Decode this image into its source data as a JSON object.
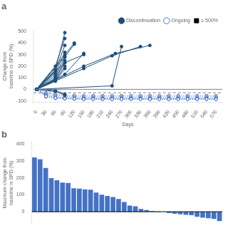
{
  "chart_data": [
    {
      "type": "line",
      "title": "a",
      "xlabel": "Days",
      "ylabel": "Change from baseline in SPD (%)",
      "xlim": [
        -10,
        590
      ],
      "ylim": [
        -110,
        510
      ],
      "xticks": [
        0,
        30,
        60,
        90,
        120,
        150,
        180,
        210,
        240,
        270,
        300,
        330,
        360,
        390,
        420,
        450,
        480,
        510,
        540,
        570
      ],
      "yticks": [
        -100,
        0,
        100,
        200,
        300,
        400,
        500
      ],
      "grid": false,
      "legend": "upper right",
      "reference_lines": [
        {
          "y": 0,
          "color": "gray",
          "line_style": "solid"
        },
        {
          "y": -30,
          "color": "gray",
          "line_style": "dashed"
        }
      ],
      "series": [
        {
          "name": "Discontinuation",
          "color": "#1F4E79",
          "line_style": "solid",
          "marker": "circle",
          "x": [
            0,
            60,
            90
          ],
          "values": [
            0,
            170,
            490
          ]
        },
        {
          "name": "Discontinuation",
          "color": "#1F4E79",
          "line_style": "solid",
          "marker": "circle",
          "x": [
            0,
            60,
            90
          ],
          "values": [
            0,
            200,
            440
          ]
        },
        {
          "name": "Discontinuation",
          "color": "#1F4E79",
          "line_style": "solid",
          "marker": "circle",
          "x": [
            0,
            60,
            90
          ],
          "values": [
            0,
            160,
            380
          ]
        },
        {
          "name": "Discontinuation",
          "color": "#1F4E79",
          "line_style": "solid",
          "marker": "circle",
          "x": [
            0,
            60,
            90
          ],
          "values": [
            0,
            140,
            320
          ]
        },
        {
          "name": "Discontinuation",
          "color": "#1F4E79",
          "line_style": "solid",
          "marker": "circle",
          "x": [
            0,
            60,
            90
          ],
          "values": [
            0,
            120,
            280
          ]
        },
        {
          "name": "Discontinuation",
          "color": "#1F4E79",
          "line_style": "solid",
          "marker": "circle",
          "x": [
            0,
            60,
            90
          ],
          "values": [
            0,
            100,
            250
          ]
        },
        {
          "name": "Discontinuation",
          "color": "#1F4E79",
          "line_style": "solid",
          "marker": "circle",
          "x": [
            0,
            60,
            90
          ],
          "values": [
            0,
            90,
            230
          ]
        },
        {
          "name": "Discontinuation",
          "color": "#1F4E79",
          "line_style": "solid",
          "marker": "circle",
          "x": [
            0,
            60,
            90
          ],
          "values": [
            0,
            80,
            200
          ]
        },
        {
          "name": "Discontinuation",
          "color": "#1F4E79",
          "line_style": "solid",
          "marker": "circle",
          "x": [
            0,
            60,
            90
          ],
          "values": [
            0,
            70,
            180
          ]
        },
        {
          "name": "Discontinuation",
          "color": "#1F4E79",
          "line_style": "solid",
          "marker": "circle",
          "x": [
            0,
            90,
            150
          ],
          "values": [
            0,
            130,
            310
          ]
        },
        {
          "name": "Discontinuation",
          "color": "#1F4E79",
          "line_style": "solid",
          "marker": "circle",
          "x": [
            0,
            90,
            120
          ],
          "values": [
            0,
            280,
            390
          ]
        },
        {
          "name": "Discontinuation",
          "color": "#1F4E79",
          "line_style": "solid",
          "marker": "circle",
          "x": [
            0,
            90,
            150
          ],
          "values": [
            0,
            230,
            300
          ]
        },
        {
          "name": "Discontinuation",
          "color": "#1F4E79",
          "line_style": "solid",
          "marker": "circle",
          "x": [
            0,
            90,
            120
          ],
          "values": [
            0,
            300,
            400
          ]
        },
        {
          "name": "Discontinuation",
          "color": "#1F4E79",
          "line_style": "solid",
          "marker": "circle",
          "x": [
            0,
            150,
            240,
            330
          ],
          "values": [
            0,
            180,
            290,
            370
          ]
        },
        {
          "name": "Discontinuation",
          "color": "#1F4E79",
          "line_style": "solid",
          "marker": "circle",
          "x": [
            0,
            150,
            250,
            360
          ],
          "values": [
            0,
            200,
            310,
            380
          ]
        },
        {
          "name": "Discontinuation",
          "color": "#1F4E79",
          "line_style": "solid",
          "marker": "circle",
          "x": [
            0,
            240,
            270
          ],
          "values": [
            0,
            30,
            370
          ]
        },
        {
          "name": "Discontinuation",
          "color": "#1F4E79",
          "line_style": "solid",
          "marker": "circle",
          "x": [
            0,
            60,
            90
          ],
          "values": [
            0,
            -20,
            -50
          ]
        },
        {
          "name": "Discontinuation",
          "color": "#1F4E79",
          "line_style": "solid",
          "marker": "circle",
          "x": [
            0,
            60,
            90
          ],
          "values": [
            0,
            -10,
            -40
          ]
        },
        {
          "name": "Ongoing",
          "color": "#4472C4",
          "line_style": "dotted",
          "marker": "open_circle",
          "x": [
            0,
            30,
            60,
            90,
            120,
            150,
            180,
            210,
            240,
            270,
            300,
            330,
            360,
            390,
            420,
            450,
            480,
            510,
            540,
            570
          ],
          "values": [
            0,
            -60,
            -75,
            -80,
            -82,
            -85,
            -85,
            -85,
            -85,
            -85,
            -85,
            -85,
            -85,
            -85,
            -85,
            -85,
            -85,
            -85,
            -85,
            -85
          ]
        },
        {
          "name": "Ongoing",
          "color": "#4472C4",
          "line_style": "dotted",
          "marker": "open_circle",
          "x": [
            0,
            30,
            60,
            90,
            120,
            150,
            180,
            210,
            240,
            270,
            300,
            330,
            360,
            390,
            420,
            450,
            480,
            510,
            540,
            570
          ],
          "values": [
            0,
            -65,
            -78,
            -82,
            -84,
            -86,
            -86,
            -86,
            -86,
            -86,
            -86,
            -86,
            -86,
            -86,
            -86,
            -86,
            -86,
            -86,
            -86,
            -86
          ]
        },
        {
          "name": "Ongoing",
          "color": "#4472C4",
          "line_style": "dotted",
          "marker": "open_circle",
          "x": [
            0,
            30,
            60,
            90,
            120,
            150,
            180,
            210,
            240,
            270,
            300,
            330,
            360,
            390,
            420,
            450,
            480,
            510,
            540,
            570
          ],
          "values": [
            0,
            -55,
            -70,
            -75,
            -78,
            -80,
            -80,
            -80,
            -80,
            -80,
            -80,
            -80,
            -80,
            -80,
            -80,
            -80,
            -80,
            -80,
            -80,
            -80
          ]
        },
        {
          "name": "Ongoing",
          "color": "#4472C4",
          "line_style": "dotted",
          "marker": "open_circle",
          "x": [
            0,
            30,
            60,
            90,
            120,
            150,
            180,
            210,
            240,
            270,
            300,
            330,
            360,
            390,
            420,
            450,
            480,
            510,
            540,
            570
          ],
          "values": [
            0,
            -50,
            -65,
            -70,
            -73,
            -75,
            -75,
            -75,
            -75,
            -75,
            -75,
            -75,
            -75,
            -75,
            -75,
            -75,
            -75,
            -75,
            -75,
            -75
          ]
        },
        {
          "name": "Ongoing",
          "color": "#4472C4",
          "line_style": "dotted",
          "marker": "open_circle",
          "x": [
            0,
            30,
            60,
            90,
            120,
            150,
            180,
            210,
            240,
            270,
            300,
            330,
            360,
            390,
            420,
            450,
            480,
            510,
            540,
            570
          ],
          "values": [
            0,
            -40,
            -55,
            -60,
            -63,
            -65,
            -65,
            -65,
            -65,
            -65,
            -65,
            -65,
            -65,
            -65,
            -65,
            -65,
            -65,
            -65,
            -65,
            -65
          ]
        },
        {
          "name": "Ongoing",
          "color": "#4472C4",
          "line_style": "dotted",
          "marker": "open_circle",
          "x": [
            0,
            30,
            60,
            90,
            120,
            150,
            180,
            210,
            240,
            270,
            300,
            330,
            360,
            390,
            420,
            450,
            480,
            510,
            540,
            570
          ],
          "values": [
            0,
            -30,
            -45,
            -50,
            -53,
            -55,
            -55,
            -55,
            -55,
            -55,
            -55,
            -55,
            -55,
            -55,
            -55,
            -55,
            -55,
            -55,
            -55,
            -55
          ]
        },
        {
          "name": "≥ 500%",
          "color": "black",
          "line_style": "none",
          "marker": "square",
          "x": [],
          "values": []
        }
      ]
    },
    {
      "type": "bar",
      "title": "b",
      "ylabel": "Maximum change from baseline in SPD (%)",
      "categories": [
        null,
        null,
        null,
        null,
        null,
        null,
        null,
        null,
        null,
        null,
        null,
        null,
        null,
        null,
        null,
        null,
        null,
        null,
        null,
        null,
        null,
        null,
        null,
        null,
        null,
        null,
        null,
        null,
        null,
        null,
        null,
        null,
        null,
        null
      ],
      "values": [
        320,
        310,
        258,
        198,
        186,
        172,
        170,
        138,
        136,
        132,
        130,
        113,
        100,
        93,
        87,
        75,
        57,
        36,
        32,
        16,
        10,
        4,
        2,
        0,
        -8,
        -12,
        -15,
        -18,
        -20,
        -30,
        -35,
        -38,
        -42,
        -55
      ],
      "color": "#4472C4",
      "ylim": [
        -70,
        410
      ],
      "yticks": [
        0,
        100,
        200,
        300,
        400
      ],
      "grid": false,
      "tick_labels": "y",
      "reference_lines": [
        {
          "y": 0,
          "color": "black",
          "line_style": "solid"
        }
      ]
    }
  ]
}
